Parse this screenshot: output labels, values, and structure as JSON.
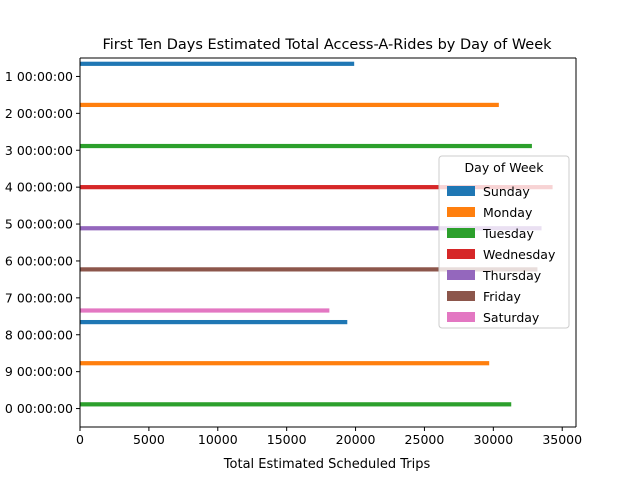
{
  "chart_data": {
    "type": "bar",
    "orientation": "horizontal",
    "title": "First Ten Days Estimated Total Access-A-Rides by Day of Week",
    "xlabel": "Total Estimated Scheduled Trips",
    "ylabel": "",
    "xlim": [
      0,
      36000
    ],
    "xticks": [
      0,
      5000,
      10000,
      15000,
      20000,
      25000,
      30000,
      35000
    ],
    "xtick_labels": [
      "0",
      "5000",
      "10000",
      "15000",
      "20000",
      "25000",
      "30000",
      "35000"
    ],
    "categories": [
      "…1 00:00:00",
      "…2 00:00:00",
      "…3 00:00:00",
      "…4 00:00:00",
      "…5 00:00:00",
      "…6 00:00:00",
      "…7 00:00:00",
      "…8 00:00:00",
      "…9 00:00:00",
      "…0 00:00:00"
    ],
    "series": [
      {
        "name": "Sunday",
        "color": "#1f77b4",
        "values": [
          19900,
          null,
          null,
          null,
          null,
          null,
          null,
          19400,
          null,
          null
        ]
      },
      {
        "name": "Monday",
        "color": "#ff7f0e",
        "values": [
          null,
          30400,
          null,
          null,
          null,
          null,
          null,
          null,
          29700,
          null
        ]
      },
      {
        "name": "Tuesday",
        "color": "#2ca02c",
        "values": [
          null,
          null,
          32800,
          null,
          null,
          null,
          null,
          null,
          null,
          31300
        ]
      },
      {
        "name": "Wednesday",
        "color": "#d62728",
        "values": [
          null,
          null,
          null,
          34300,
          null,
          null,
          null,
          null,
          null,
          null
        ]
      },
      {
        "name": "Thursday",
        "color": "#9467bd",
        "values": [
          null,
          null,
          null,
          null,
          33500,
          null,
          null,
          null,
          null,
          null
        ]
      },
      {
        "name": "Friday",
        "color": "#8c564b",
        "values": [
          null,
          null,
          null,
          null,
          null,
          33200,
          null,
          null,
          null,
          null
        ]
      },
      {
        "name": "Saturday",
        "color": "#e377c2",
        "values": [
          null,
          null,
          null,
          null,
          null,
          null,
          18100,
          null,
          null,
          null
        ]
      }
    ],
    "legend": {
      "title": "Day of Week",
      "placement": "center-right"
    }
  }
}
